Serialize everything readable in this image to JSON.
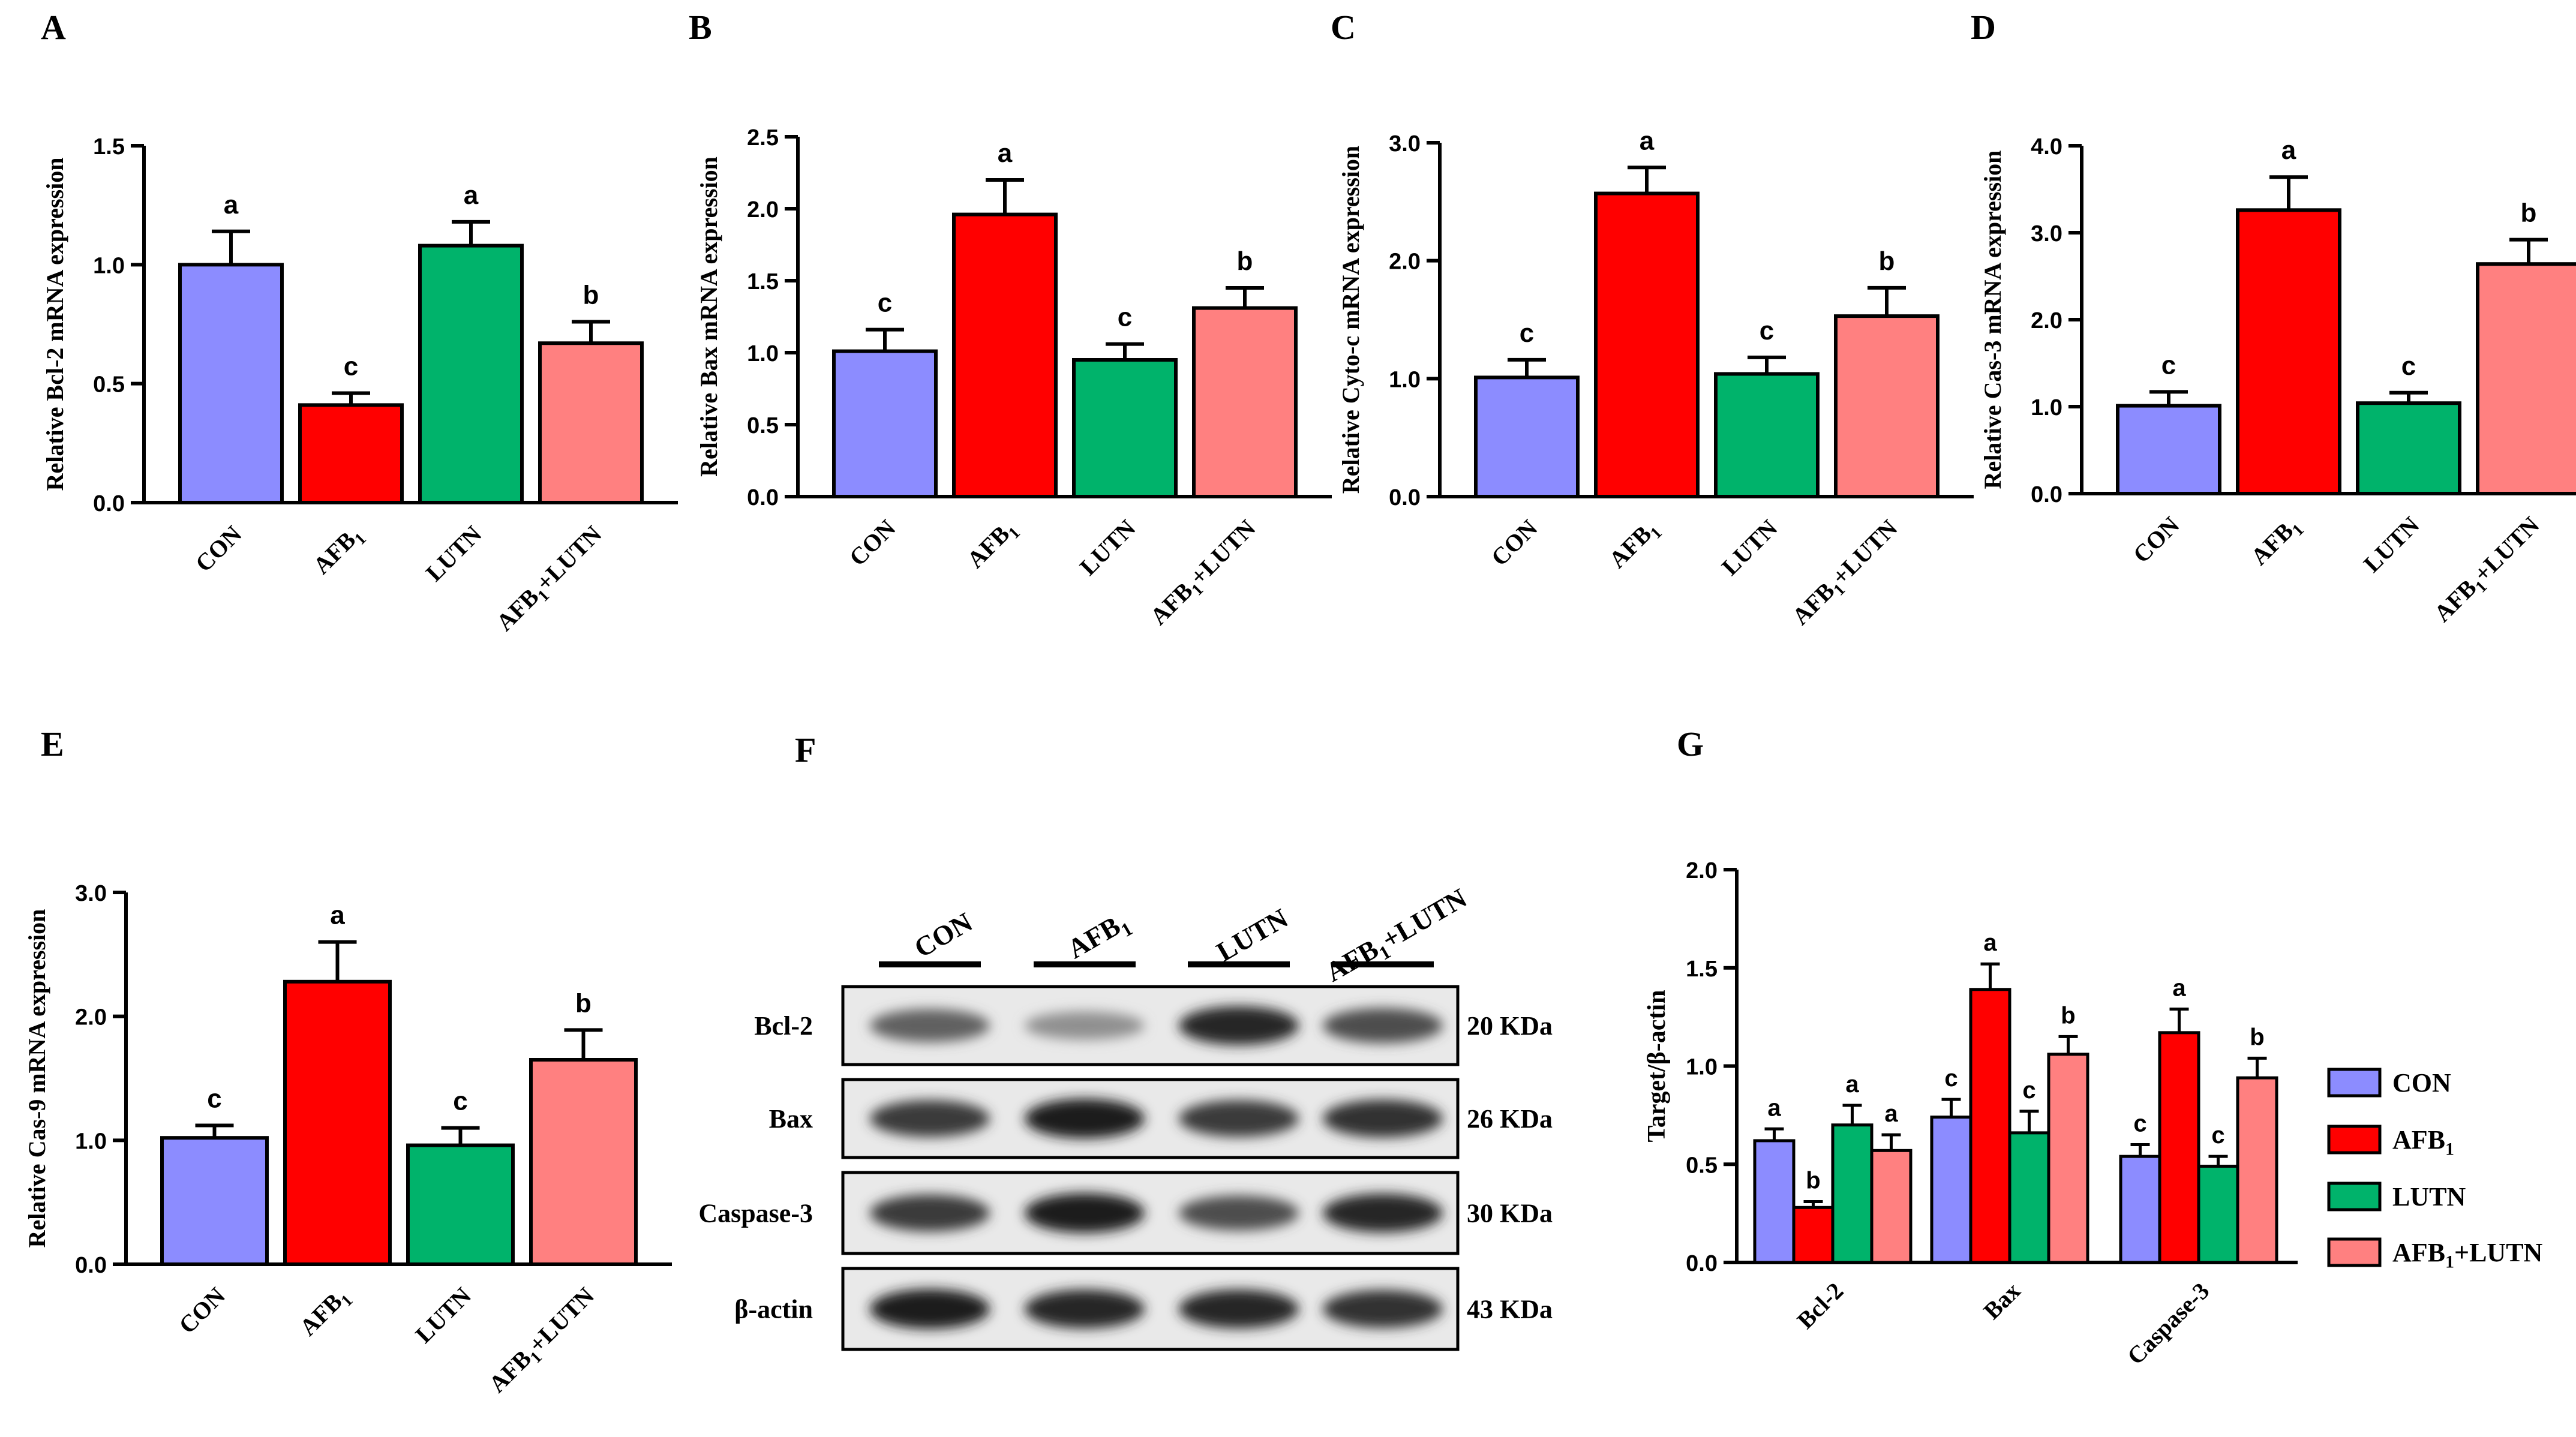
{
  "colors": {
    "CON": "#8c8cff",
    "AFB1": "#ff0000",
    "LUTN": "#00b36b",
    "AFB1+LUTN": "#ff8080",
    "axis": "#000000"
  },
  "bar_charts": [
    {
      "letter": "A",
      "type": "bar",
      "ylabel": "Relative Bcl-2 mRNA expression",
      "categories": [
        "CON",
        "AFB1",
        "LUTN",
        "AFB1+LUTN"
      ],
      "values": [
        1.0,
        0.41,
        1.08,
        0.67
      ],
      "errors": [
        0.14,
        0.05,
        0.1,
        0.09
      ],
      "letters": [
        "a",
        "c",
        "a",
        "b"
      ],
      "ylim": [
        0,
        1.5
      ],
      "ticks": [
        0.0,
        0.5,
        1.0,
        1.5
      ],
      "tick_labels": [
        "0.0",
        "0.5",
        "1.0",
        "1.5"
      ]
    },
    {
      "letter": "B",
      "type": "bar",
      "ylabel": "Relative Bax mRNA expression",
      "categories": [
        "CON",
        "AFB1",
        "LUTN",
        "AFB1+LUTN"
      ],
      "values": [
        1.01,
        1.96,
        0.95,
        1.31
      ],
      "errors": [
        0.15,
        0.24,
        0.11,
        0.14
      ],
      "letters": [
        "c",
        "a",
        "c",
        "b"
      ],
      "ylim": [
        0,
        2.5
      ],
      "ticks": [
        0.0,
        0.5,
        1.0,
        1.5,
        2.0,
        2.5
      ],
      "tick_labels": [
        "0.0",
        "0.5",
        "1.0",
        "1.5",
        "2.0",
        "2.5"
      ]
    },
    {
      "letter": "C",
      "type": "bar",
      "ylabel": "Relative Cyto-c mRNA expression",
      "categories": [
        "CON",
        "AFB1",
        "LUTN",
        "AFB1+LUTN"
      ],
      "values": [
        1.01,
        2.57,
        1.04,
        1.53
      ],
      "errors": [
        0.15,
        0.22,
        0.14,
        0.24
      ],
      "letters": [
        "c",
        "a",
        "c",
        "b"
      ],
      "ylim": [
        0,
        3.0
      ],
      "ticks": [
        0.0,
        1.0,
        2.0,
        3.0
      ],
      "tick_labels": [
        "0.0",
        "1.0",
        "2.0",
        "3.0"
      ]
    },
    {
      "letter": "D",
      "type": "bar",
      "ylabel": "Relative Cas-3 mRNA expression",
      "categories": [
        "CON",
        "AFB1",
        "LUTN",
        "AFB1+LUTN"
      ],
      "values": [
        1.01,
        3.26,
        1.04,
        2.64
      ],
      "errors": [
        0.16,
        0.38,
        0.12,
        0.28
      ],
      "letters": [
        "c",
        "a",
        "c",
        "b"
      ],
      "ylim": [
        0,
        4.0
      ],
      "ticks": [
        0.0,
        1.0,
        2.0,
        3.0,
        4.0
      ],
      "tick_labels": [
        "0.0",
        "1.0",
        "2.0",
        "3.0",
        "4.0"
      ]
    },
    {
      "letter": "E",
      "type": "bar",
      "ylabel": "Relative Cas-9 mRNA expression",
      "categories": [
        "CON",
        "AFB1",
        "LUTN",
        "AFB1+LUTN"
      ],
      "values": [
        1.02,
        2.28,
        0.96,
        1.65
      ],
      "errors": [
        0.1,
        0.32,
        0.14,
        0.24
      ],
      "letters": [
        "c",
        "a",
        "c",
        "b"
      ],
      "ylim": [
        0,
        3.0
      ],
      "ticks": [
        0.0,
        1.0,
        2.0,
        3.0
      ],
      "tick_labels": [
        "0.0",
        "1.0",
        "2.0",
        "3.0"
      ]
    }
  ],
  "blot": {
    "letter": "F",
    "lanes": [
      "CON",
      "AFB1",
      "LUTN",
      "AFB1+LUTN"
    ],
    "rows": [
      {
        "label": "Bcl-2",
        "size": "20 KDa",
        "intensity": [
          0.6,
          0.35,
          0.9,
          0.7
        ]
      },
      {
        "label": "Bax",
        "size": "26 KDa",
        "intensity": [
          0.8,
          0.95,
          0.8,
          0.85
        ]
      },
      {
        "label": "Caspase-3",
        "size": "30 KDa",
        "intensity": [
          0.8,
          0.95,
          0.7,
          0.9
        ]
      },
      {
        "label": "β-actin",
        "size": "43 KDa",
        "intensity": [
          0.95,
          0.9,
          0.9,
          0.85
        ]
      }
    ]
  },
  "grouped_chart": {
    "letter": "G",
    "type": "bar",
    "ylabel": "Target/β-actin",
    "categories": [
      "Bcl-2",
      "Bax",
      "Caspase-3"
    ],
    "ylim": [
      0,
      2.0
    ],
    "ticks": [
      0.0,
      0.5,
      1.0,
      1.5,
      2.0
    ],
    "tick_labels": [
      "0.0",
      "0.5",
      "1.0",
      "1.5",
      "2.0"
    ],
    "series": [
      {
        "name": "CON",
        "values": [
          0.62,
          0.74,
          0.54
        ],
        "errors": [
          0.06,
          0.09,
          0.06
        ],
        "letters": [
          "a",
          "c",
          "c"
        ]
      },
      {
        "name": "AFB1",
        "values": [
          0.28,
          1.39,
          1.17
        ],
        "errors": [
          0.03,
          0.13,
          0.12
        ],
        "letters": [
          "b",
          "a",
          "a"
        ]
      },
      {
        "name": "LUTN",
        "values": [
          0.7,
          0.66,
          0.49
        ],
        "errors": [
          0.1,
          0.11,
          0.05
        ],
        "letters": [
          "a",
          "c",
          "c"
        ]
      },
      {
        "name": "AFB1+LUTN",
        "values": [
          0.57,
          1.06,
          0.94
        ],
        "errors": [
          0.08,
          0.09,
          0.1
        ],
        "letters": [
          "a",
          "b",
          "b"
        ]
      }
    ],
    "legend_position": "right"
  }
}
